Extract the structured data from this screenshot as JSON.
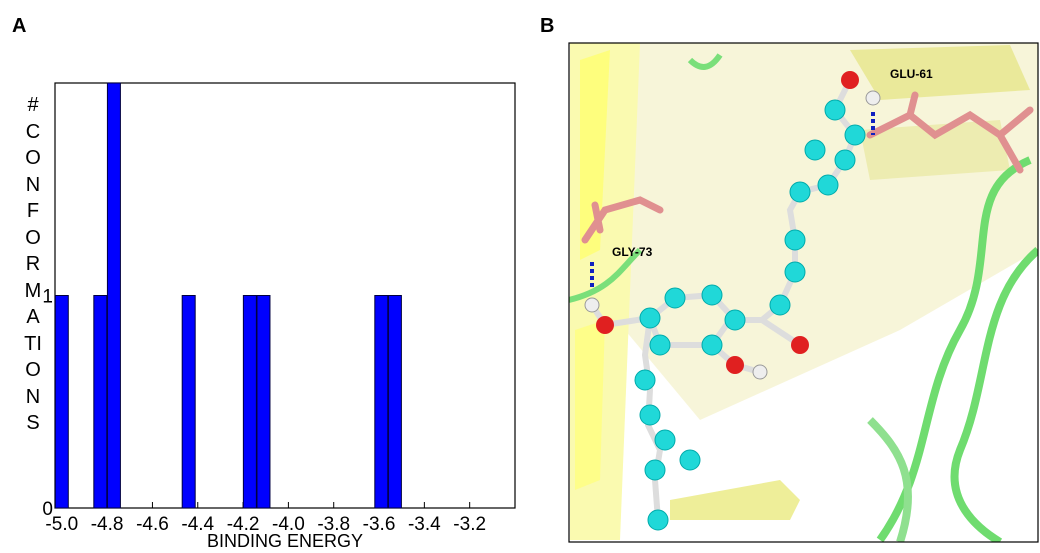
{
  "panel_labels": [
    "A",
    "B"
  ],
  "image_labels": [
    "GLU-61",
    "GLY-73"
  ],
  "chart_data": {
    "type": "bar",
    "x_label": "BINDING ENERGY",
    "y_label": "#CONFORMATIONS",
    "x": [
      -5.0,
      -4.83,
      -4.77,
      -4.44,
      -4.17,
      -4.11,
      -3.59,
      -3.53
    ],
    "values": [
      1,
      1,
      2,
      1,
      1,
      1,
      1,
      1
    ],
    "color": "#0000ff",
    "xlim": [
      -5.03,
      -3.0
    ],
    "ylim": [
      0,
      2
    ],
    "xticks": [
      {
        "value": -5.0,
        "label": "-5.0"
      },
      -4.8,
      -4.6,
      -4.4,
      -4.2,
      {
        "value": -4.0,
        "label": "-4.0"
      },
      -3.8,
      -3.6,
      -3.4,
      -3.2
    ],
    "yticks": [
      0,
      1
    ]
  }
}
